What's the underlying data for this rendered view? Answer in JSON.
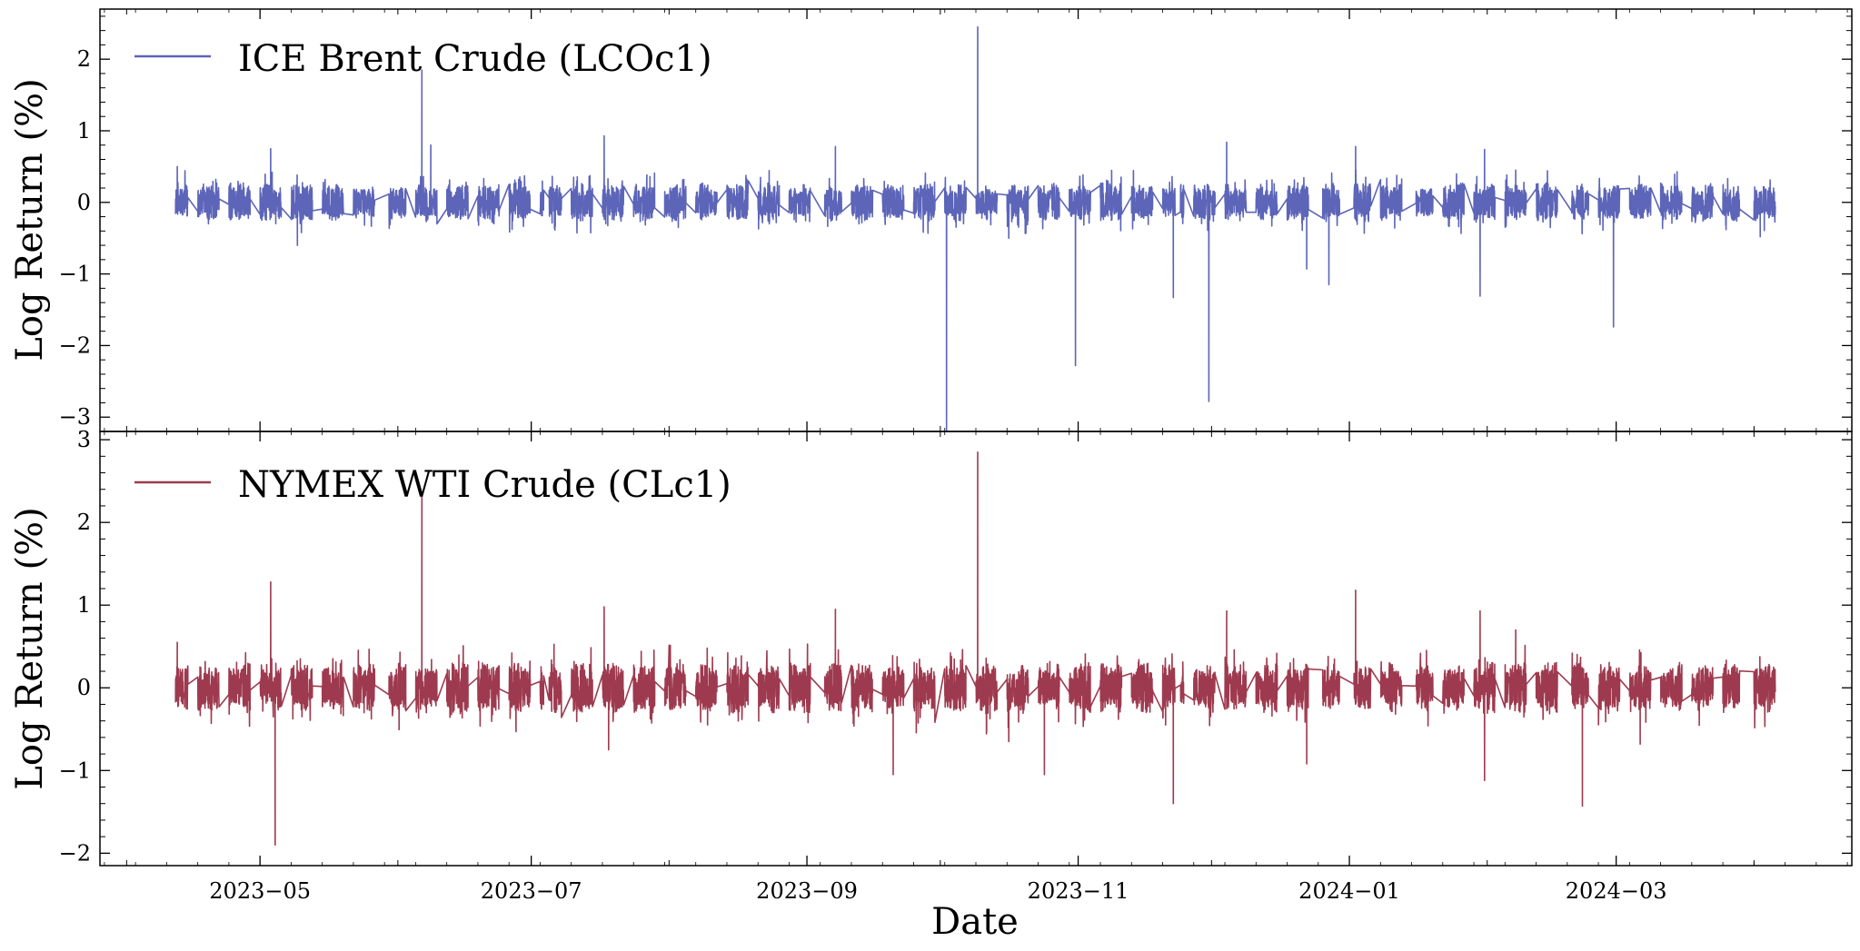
{
  "chart_data": [
    {
      "type": "line",
      "panel": "top",
      "ylabel": "Log Return (%)",
      "ylim": [
        -3.2,
        2.7
      ],
      "yticks": [
        2,
        1,
        0,
        -1,
        -2,
        -3
      ],
      "ytick_labels": [
        "2",
        "1",
        "0",
        "−1",
        "−2",
        "−3"
      ],
      "xlim": [
        "2023-03-26",
        "2024-04-23"
      ],
      "legend_position": "upper-left",
      "grid": false,
      "series": [
        {
          "name": "ICE Brent Crude (LCOc1)",
          "color": "#5c65b8",
          "band_amplitude": 0.22,
          "x": [
            "2023-04-12",
            "2023-04-19",
            "2023-05-03",
            "2023-05-09",
            "2023-06-06",
            "2023-06-08",
            "2023-07-04",
            "2023-07-17",
            "2023-09-07",
            "2023-09-26",
            "2023-10-02",
            "2023-10-09",
            "2023-10-16",
            "2023-10-31",
            "2023-11-22",
            "2023-11-30",
            "2023-12-04",
            "2023-12-22",
            "2023-12-27",
            "2024-01-02",
            "2024-01-30",
            "2024-01-31",
            "2024-02-07",
            "2024-02-29",
            "2024-04-02",
            "2024-04-05"
          ],
          "y": [
            0.5,
            -0.3,
            0.75,
            -0.6,
            1.85,
            0.8,
            0.5,
            0.93,
            0.78,
            0.0,
            -3.2,
            2.45,
            -0.5,
            -2.28,
            -1.33,
            -2.78,
            0.84,
            -0.93,
            -1.15,
            0.78,
            -1.31,
            0.74,
            0.45,
            -1.74,
            -0.48,
            0.2
          ]
        }
      ]
    },
    {
      "type": "line",
      "panel": "bottom",
      "xlabel": "Date",
      "ylabel": "Log Return (%)",
      "ylim": [
        -2.15,
        3.1
      ],
      "yticks": [
        3,
        2,
        1,
        0,
        -1,
        -2
      ],
      "ytick_labels": [
        "3",
        "2",
        "1",
        "0",
        "−1",
        "−2"
      ],
      "xlim": [
        "2023-03-26",
        "2024-04-23"
      ],
      "xticks": [
        "2023-05-01",
        "2023-07-01",
        "2023-09-01",
        "2023-11-01",
        "2024-01-01",
        "2024-03-01"
      ],
      "xtick_labels": [
        "2023−05",
        "2023−07",
        "2023−09",
        "2023−11",
        "2024−01",
        "2024−03"
      ],
      "legend_position": "upper-left",
      "grid": false,
      "series": [
        {
          "name": "NYMEX WTI Crude (CLc1)",
          "color": "#9e3a4f",
          "band_amplitude": 0.25,
          "x": [
            "2023-04-12",
            "2023-05-03",
            "2023-05-04",
            "2023-06-06",
            "2023-06-07",
            "2023-07-17",
            "2023-07-18",
            "2023-09-07",
            "2023-09-20",
            "2023-10-09",
            "2023-10-16",
            "2023-10-24",
            "2023-11-22",
            "2023-12-04",
            "2023-12-22",
            "2024-01-02",
            "2024-01-30",
            "2024-01-31",
            "2024-02-07",
            "2024-02-22",
            "2024-03-06",
            "2024-04-05"
          ],
          "y": [
            0.55,
            1.28,
            -1.9,
            2.35,
            -0.3,
            0.98,
            -0.75,
            0.95,
            -1.05,
            2.85,
            -0.65,
            -1.05,
            -1.4,
            0.93,
            -0.92,
            1.18,
            0.93,
            -1.12,
            0.7,
            -1.43,
            -0.68,
            0.25
          ]
        }
      ]
    }
  ]
}
